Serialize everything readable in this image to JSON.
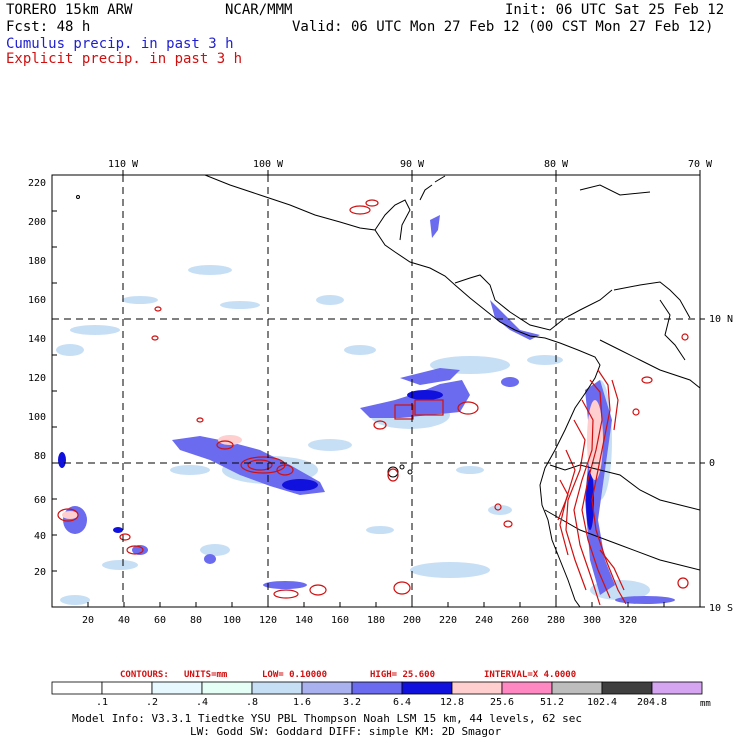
{
  "header": {
    "model": "TORERO  15km ARW",
    "org": "NCAR/MMM",
    "init": "Init: 06 UTC Sat 25 Feb 12",
    "fcst": "Fcst:   48 h",
    "valid": "Valid: 06 UTC Mon 27 Feb 12 (00 CST Mon 27 Feb 12)",
    "field1": "Cumulus precip. in past 3 h",
    "field2": "Explicit precip. in past 3 h"
  },
  "colors": {
    "field1": "#1f1fd0",
    "field2": "#d01010"
  },
  "map": {
    "lon_labels": [
      "110 W",
      "100 W",
      "90 W",
      "80 W",
      "70 W"
    ],
    "lat_labels": [
      "10 N",
      "0",
      "10 S"
    ],
    "x_ticks": [
      "20",
      "40",
      "60",
      "80",
      "100",
      "120",
      "140",
      "160",
      "180",
      "200",
      "220",
      "240",
      "260",
      "280",
      "300",
      "320"
    ],
    "y_ticks": [
      "20",
      "40",
      "60",
      "80",
      "100",
      "120",
      "140",
      "160",
      "180",
      "200",
      "220"
    ]
  },
  "contour_info": {
    "contours": "CONTOURS:",
    "units": "UNITS=mm",
    "low": "LOW= 0.10000",
    "high": "HIGH=  25.600",
    "interval": "INTERVAL=X  4.0000"
  },
  "colorbar": {
    "unit": "mm",
    "labels": [
      ".1",
      ".2",
      ".4",
      ".8",
      "1.6",
      "3.2",
      "6.4",
      "12.8",
      "25.6",
      "51.2",
      "102.4",
      "204.8"
    ],
    "colors": [
      "#ffffff",
      "#ffffff",
      "#e8f8ff",
      "#e6fff6",
      "#c7dff5",
      "#a9b1ef",
      "#6b6bef",
      "#1111dd",
      "#ffcece",
      "#ff88c3",
      "#bdbdbd",
      "#3f3f3f",
      "#d6a5f2"
    ]
  },
  "footer": {
    "line1": "Model Info: V3.3.1    Tiedtke YSU PBL  Thompson    Noah LSM  15 km,   44 levels,   62 sec",
    "line2": "LW: Godd SW: Goddard DIFF: simple KM: 2D Smagor"
  }
}
